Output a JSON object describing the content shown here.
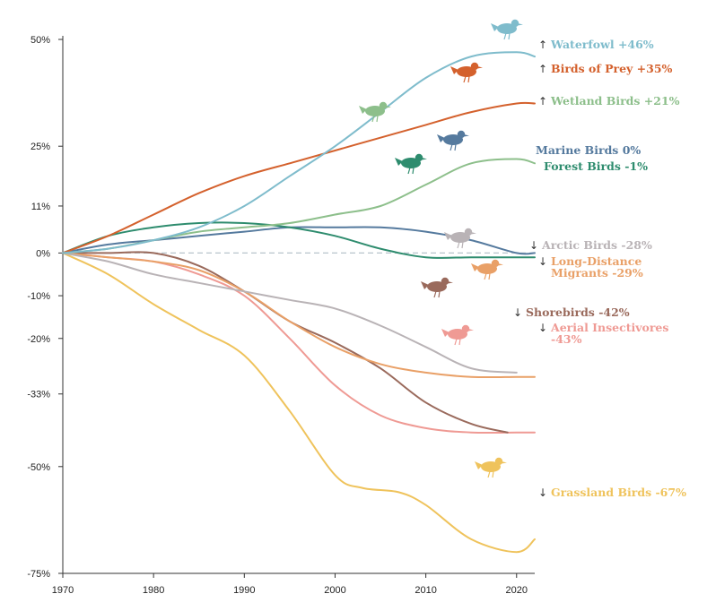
{
  "chart_data": {
    "type": "line",
    "title": "",
    "xlabel": "",
    "ylabel": "",
    "xlim": [
      1970,
      2022
    ],
    "ylim": [
      -75,
      50
    ],
    "grid": false,
    "x_ticks": [
      1970,
      1980,
      1990,
      2000,
      2010,
      2020
    ],
    "x_tick_labels": [
      "1970",
      "1980",
      "1990",
      "2000",
      "2010",
      "2020"
    ],
    "y_ticks": [
      50,
      25,
      11,
      0,
      -10,
      -20,
      -33,
      -50,
      -75
    ],
    "y_tick_labels": [
      "50%",
      "25%",
      "11%",
      "0%",
      "-10%",
      "-20%",
      "-33%",
      "-50%",
      "-75%"
    ],
    "baseline": 0,
    "series": [
      {
        "name": "Waterfowl",
        "change_label": "+46%",
        "direction": "up",
        "color": "#7fbccc",
        "icon": "duck-icon",
        "x": [
          1970,
          1975,
          1980,
          1985,
          1990,
          1995,
          2000,
          2005,
          2010,
          2015,
          2020,
          2022
        ],
        "y": [
          0,
          1,
          3,
          6,
          11,
          18,
          25,
          33,
          41,
          46,
          47,
          46
        ]
      },
      {
        "name": "Birds of Prey",
        "change_label": "+35%",
        "direction": "up",
        "color": "#d4612d",
        "icon": "raptor-icon",
        "x": [
          1970,
          1975,
          1980,
          1985,
          1990,
          1995,
          2000,
          2005,
          2010,
          2015,
          2020,
          2022
        ],
        "y": [
          0,
          4,
          9,
          14,
          18,
          21,
          24,
          27,
          30,
          33,
          35,
          35
        ]
      },
      {
        "name": "Wetland Birds",
        "change_label": "+21%",
        "direction": "up",
        "color": "#8dbf8b",
        "icon": "heron-icon",
        "x": [
          1970,
          1975,
          1980,
          1985,
          1990,
          1995,
          2000,
          2005,
          2010,
          2015,
          2020,
          2022
        ],
        "y": [
          0,
          1,
          3,
          5,
          6,
          7,
          9,
          11,
          16,
          21,
          22,
          21
        ]
      },
      {
        "name": "Marine Birds",
        "change_label": "0%",
        "direction": "none",
        "color": "#557a9e",
        "icon": "seabird-icon",
        "x": [
          1970,
          1975,
          1980,
          1985,
          1990,
          1995,
          2000,
          2005,
          2010,
          2015,
          2020,
          2022
        ],
        "y": [
          0,
          2,
          3,
          4,
          5,
          6,
          6,
          6,
          5,
          3,
          0,
          0
        ]
      },
      {
        "name": "Forest Birds",
        "change_label": "-1%",
        "direction": "none",
        "color": "#2e8c6e",
        "icon": "songbird-icon",
        "x": [
          1970,
          1975,
          1980,
          1985,
          1990,
          1995,
          2000,
          2005,
          2010,
          2015,
          2020,
          2022
        ],
        "y": [
          0,
          4,
          6,
          7,
          7,
          6,
          4,
          1,
          -1,
          -1,
          -1,
          -1
        ]
      },
      {
        "name": "Arctic Birds",
        "change_label": "-28%",
        "direction": "down",
        "color": "#b9b3b6",
        "icon": "ptarmigan-icon",
        "x": [
          1970,
          1975,
          1980,
          1985,
          1990,
          1995,
          2000,
          2005,
          2010,
          2015,
          2020
        ],
        "y": [
          0,
          -2,
          -5,
          -7,
          -9,
          -11,
          -13,
          -17,
          -22,
          -27,
          -28
        ]
      },
      {
        "name": "Long-Distance Migrants",
        "name_lines": [
          "Long-Distance",
          "Migrants -29%"
        ],
        "change_label": "-29%",
        "direction": "down",
        "color": "#e9a067",
        "icon": "warbler-icon",
        "x": [
          1970,
          1975,
          1980,
          1985,
          1990,
          1995,
          2000,
          2005,
          2010,
          2015,
          2020,
          2022
        ],
        "y": [
          0,
          -1,
          -2,
          -4,
          -9,
          -16,
          -22,
          -26,
          -28,
          -29,
          -29,
          -29
        ]
      },
      {
        "name": "Shorebirds",
        "change_label": "-42%",
        "direction": "down",
        "color": "#9a6a5c",
        "icon": "curlew-icon",
        "x": [
          1970,
          1975,
          1980,
          1985,
          1990,
          1995,
          2000,
          2005,
          2010,
          2015,
          2019
        ],
        "y": [
          0,
          0,
          0,
          -3,
          -9,
          -16,
          -21,
          -27,
          -35,
          -40,
          -42
        ]
      },
      {
        "name": "Aerial Insectivores",
        "name_lines": [
          "Aerial Insectivores",
          "-43%"
        ],
        "change_label": "-43%",
        "direction": "down",
        "color": "#ef9a94",
        "icon": "swallow-icon",
        "x": [
          1970,
          1975,
          1980,
          1985,
          1990,
          1995,
          2000,
          2005,
          2010,
          2015,
          2020,
          2022
        ],
        "y": [
          0,
          -1,
          -2,
          -5,
          -10,
          -20,
          -31,
          -38,
          -41,
          -42,
          -42,
          -42
        ]
      },
      {
        "name": "Grassland Birds",
        "change_label": "-67%",
        "direction": "down",
        "color": "#efc35c",
        "icon": "meadowlark-icon",
        "x": [
          1970,
          1975,
          1980,
          1985,
          1990,
          1995,
          2000,
          2003,
          2007,
          2010,
          2015,
          2020,
          2022
        ],
        "y": [
          0,
          -5,
          -12,
          -18,
          -24,
          -37,
          -52,
          -55,
          -56,
          -59,
          -67,
          -70,
          -67
        ]
      }
    ]
  }
}
